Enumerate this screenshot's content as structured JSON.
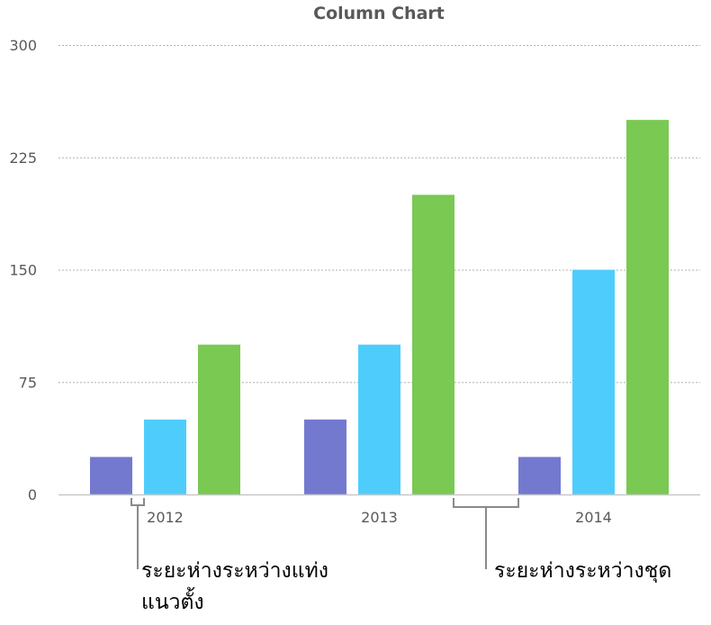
{
  "chart_data": {
    "type": "bar",
    "title": "Column Chart",
    "xlabel": "",
    "ylabel": "",
    "categories": [
      "2012",
      "2013",
      "2014"
    ],
    "series": [
      {
        "values": [
          25,
          50,
          25
        ],
        "color": "#7379cf"
      },
      {
        "values": [
          50,
          100,
          150
        ],
        "color": "#4ecdfc"
      },
      {
        "values": [
          100,
          200,
          250
        ],
        "color": "#79c953"
      }
    ],
    "ylim": [
      0,
      300
    ],
    "yticks": [
      "0",
      "75",
      "150",
      "225",
      "300"
    ],
    "grid": true,
    "legend": "none"
  },
  "annotations": {
    "bar_gap_line1": "ระยะห่างระหว่างแท่ง",
    "bar_gap_line2": "แนวตั้ง",
    "set_gap": "ระยะห่างระหว่างชุด"
  },
  "colors": {
    "gridline": "#b0b0b0",
    "axis": "#c8c8c8",
    "bracket": "#8a8a8a",
    "text": "#595959"
  }
}
